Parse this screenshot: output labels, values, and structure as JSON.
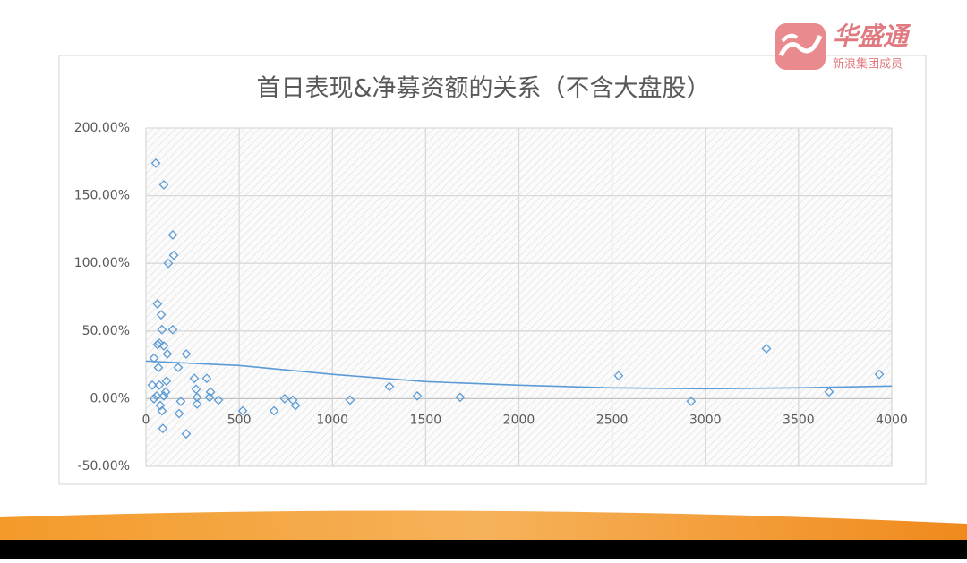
{
  "logo": {
    "brand": "华盛通",
    "tagline": "新浪集团成员"
  },
  "chart_data": {
    "type": "scatter",
    "title": "首日表现&净募资额的关系（不含大盘股）",
    "x": [
      53,
      96,
      144,
      149,
      120,
      62,
      82,
      86,
      144,
      72,
      96,
      62,
      115,
      216,
      43,
      173,
      67,
      259,
      326,
      110,
      34,
      72,
      269,
      106,
      346,
      58,
      96,
      274,
      341,
      389,
      43,
      77,
      187,
      274,
      86,
      178,
      519,
      687,
      744,
      788,
      802,
      216,
      91,
      1095,
      1306,
      1455,
      1685,
      2535,
      2924,
      3328,
      3664,
      3933
    ],
    "values": [
      174,
      158,
      121,
      106,
      100,
      70,
      62,
      51,
      51,
      41,
      39,
      40,
      33,
      33,
      30,
      23,
      23,
      15,
      15,
      13,
      10,
      10,
      7,
      5,
      5,
      2,
      2,
      1,
      1,
      -1,
      0,
      -5,
      -2,
      -4,
      -9,
      -11,
      -9,
      -9,
      0,
      -1,
      -5,
      -26,
      -22,
      -1,
      9,
      2,
      1,
      17,
      -2,
      37,
      5,
      18
    ],
    "color": "#5b9bd5",
    "trendline": {
      "x": [
        0,
        500,
        1000,
        1500,
        2000,
        2500,
        3000,
        3500,
        4000
      ],
      "values": [
        27.8,
        24.5,
        18,
        12.6,
        10,
        8,
        7.3,
        8,
        9.3
      ],
      "color": "#5b9bd5"
    },
    "xlim": [
      0,
      4000
    ],
    "xticks": [
      0,
      500,
      1000,
      1500,
      2000,
      2500,
      3000,
      3500,
      4000
    ],
    "ylim": [
      -50,
      200
    ],
    "yticks": [
      {
        "value": -50,
        "label": "-50.00%"
      },
      {
        "value": 0,
        "label": "0.00%"
      },
      {
        "value": 50,
        "label": "50.00%"
      },
      {
        "value": 100,
        "label": "100.00%"
      },
      {
        "value": 150,
        "label": "150.00%"
      },
      {
        "value": 200,
        "label": "200.00%"
      }
    ],
    "grid": true
  }
}
